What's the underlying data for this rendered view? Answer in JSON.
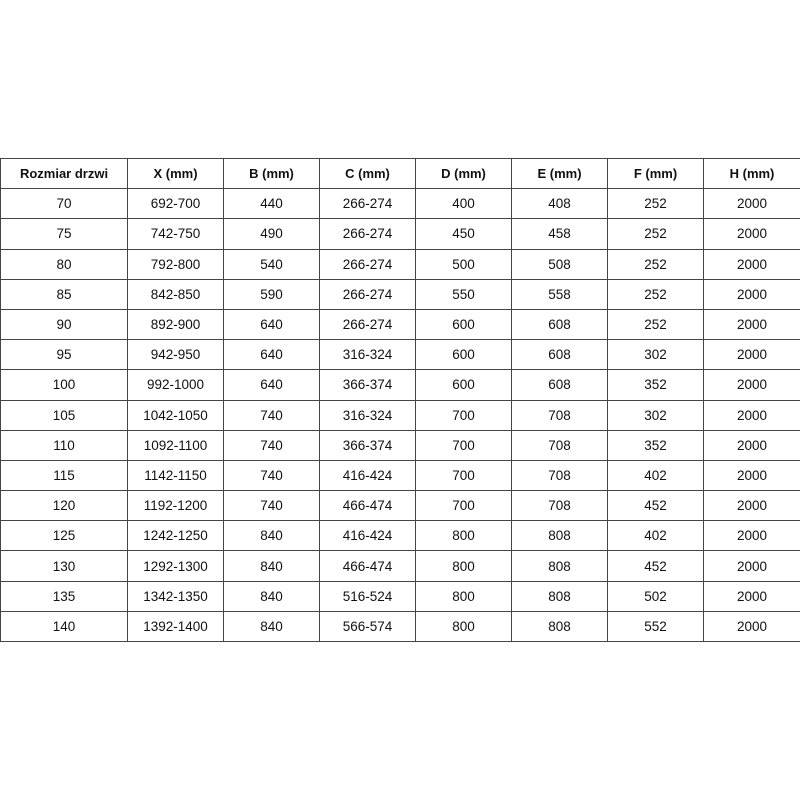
{
  "table": {
    "headers": [
      "Rozmiar drzwi",
      "X (mm)",
      "B (mm)",
      "C (mm)",
      "D (mm)",
      "E (mm)",
      "F (mm)",
      "H (mm)"
    ],
    "rows": [
      [
        "70",
        "692-700",
        "440",
        "266-274",
        "400",
        "408",
        "252",
        "2000"
      ],
      [
        "75",
        "742-750",
        "490",
        "266-274",
        "450",
        "458",
        "252",
        "2000"
      ],
      [
        "80",
        "792-800",
        "540",
        "266-274",
        "500",
        "508",
        "252",
        "2000"
      ],
      [
        "85",
        "842-850",
        "590",
        "266-274",
        "550",
        "558",
        "252",
        "2000"
      ],
      [
        "90",
        "892-900",
        "640",
        "266-274",
        "600",
        "608",
        "252",
        "2000"
      ],
      [
        "95",
        "942-950",
        "640",
        "316-324",
        "600",
        "608",
        "302",
        "2000"
      ],
      [
        "100",
        "992-1000",
        "640",
        "366-374",
        "600",
        "608",
        "352",
        "2000"
      ],
      [
        "105",
        "1042-1050",
        "740",
        "316-324",
        "700",
        "708",
        "302",
        "2000"
      ],
      [
        "110",
        "1092-1100",
        "740",
        "366-374",
        "700",
        "708",
        "352",
        "2000"
      ],
      [
        "115",
        "1142-1150",
        "740",
        "416-424",
        "700",
        "708",
        "402",
        "2000"
      ],
      [
        "120",
        "1192-1200",
        "740",
        "466-474",
        "700",
        "708",
        "452",
        "2000"
      ],
      [
        "125",
        "1242-1250",
        "840",
        "416-424",
        "800",
        "808",
        "402",
        "2000"
      ],
      [
        "130",
        "1292-1300",
        "840",
        "466-474",
        "800",
        "808",
        "452",
        "2000"
      ],
      [
        "135",
        "1342-1350",
        "840",
        "516-524",
        "800",
        "808",
        "502",
        "2000"
      ],
      [
        "140",
        "1392-1400",
        "840",
        "566-574",
        "800",
        "808",
        "552",
        "2000"
      ]
    ]
  }
}
